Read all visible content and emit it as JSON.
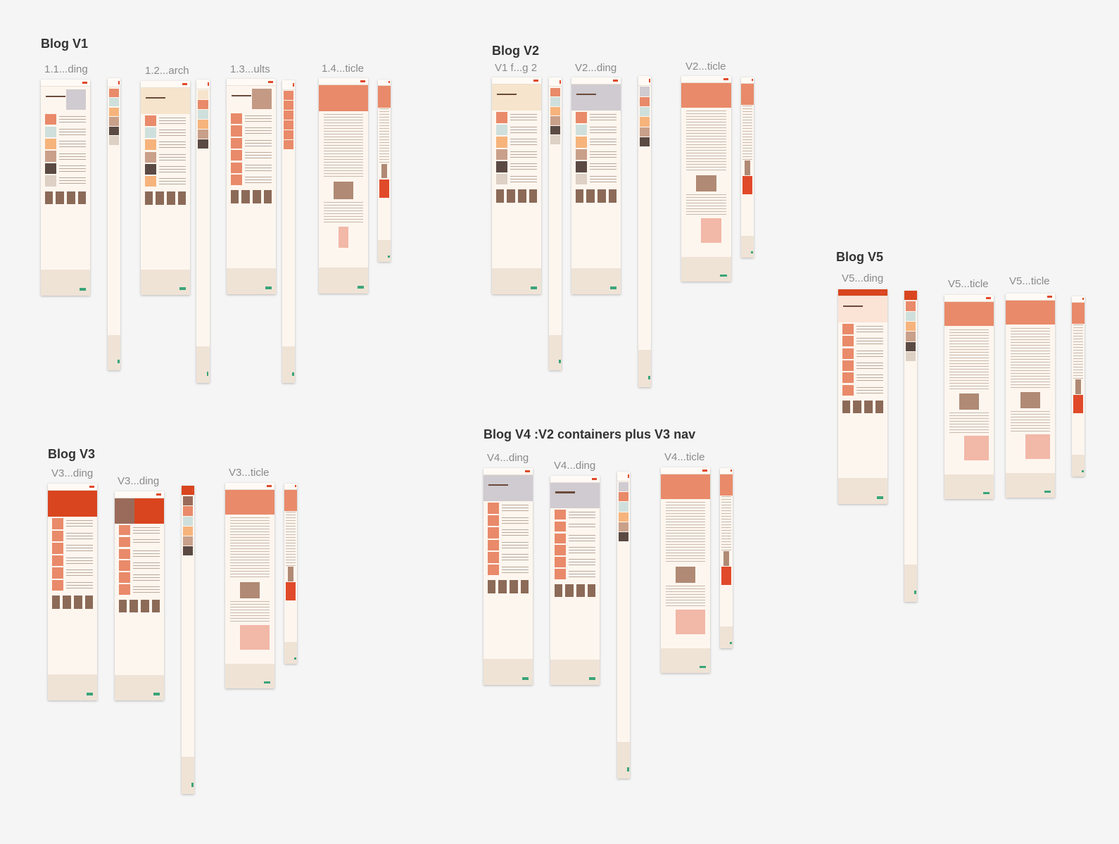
{
  "canvas": {
    "sections": [
      {
        "title": "Blog V1"
      },
      {
        "title": "Blog V2"
      },
      {
        "title": "Blog V3"
      },
      {
        "title": "Blog V4 :V2 containers plus V3 nav"
      },
      {
        "title": "Blog V5"
      }
    ],
    "frames": [
      {
        "label": "1.1...ding"
      },
      {
        "label": "1.2...arch"
      },
      {
        "label": "1.3...ults"
      },
      {
        "label": "1.4...ticle"
      },
      {
        "label": "V1 f...g 2"
      },
      {
        "label": "V2...ding"
      },
      {
        "label": "V2...ticle"
      },
      {
        "label": "V3...ding"
      },
      {
        "label": "V3...ding"
      },
      {
        "label": "V3...ticle"
      },
      {
        "label": "V4...ding"
      },
      {
        "label": "V4...ding"
      },
      {
        "label": "V4...ticle"
      },
      {
        "label": "V5...ding"
      },
      {
        "label": "V5...ticle"
      },
      {
        "label": "V5...ticle"
      }
    ]
  },
  "colors": {
    "background": "#f5f5f5",
    "accent": "#e98a6a",
    "brand_red": "#e04a2a",
    "page_bg": "#fdf6ef",
    "footer_bg": "#efe3d6",
    "label_gray": "#8a8a8a"
  }
}
